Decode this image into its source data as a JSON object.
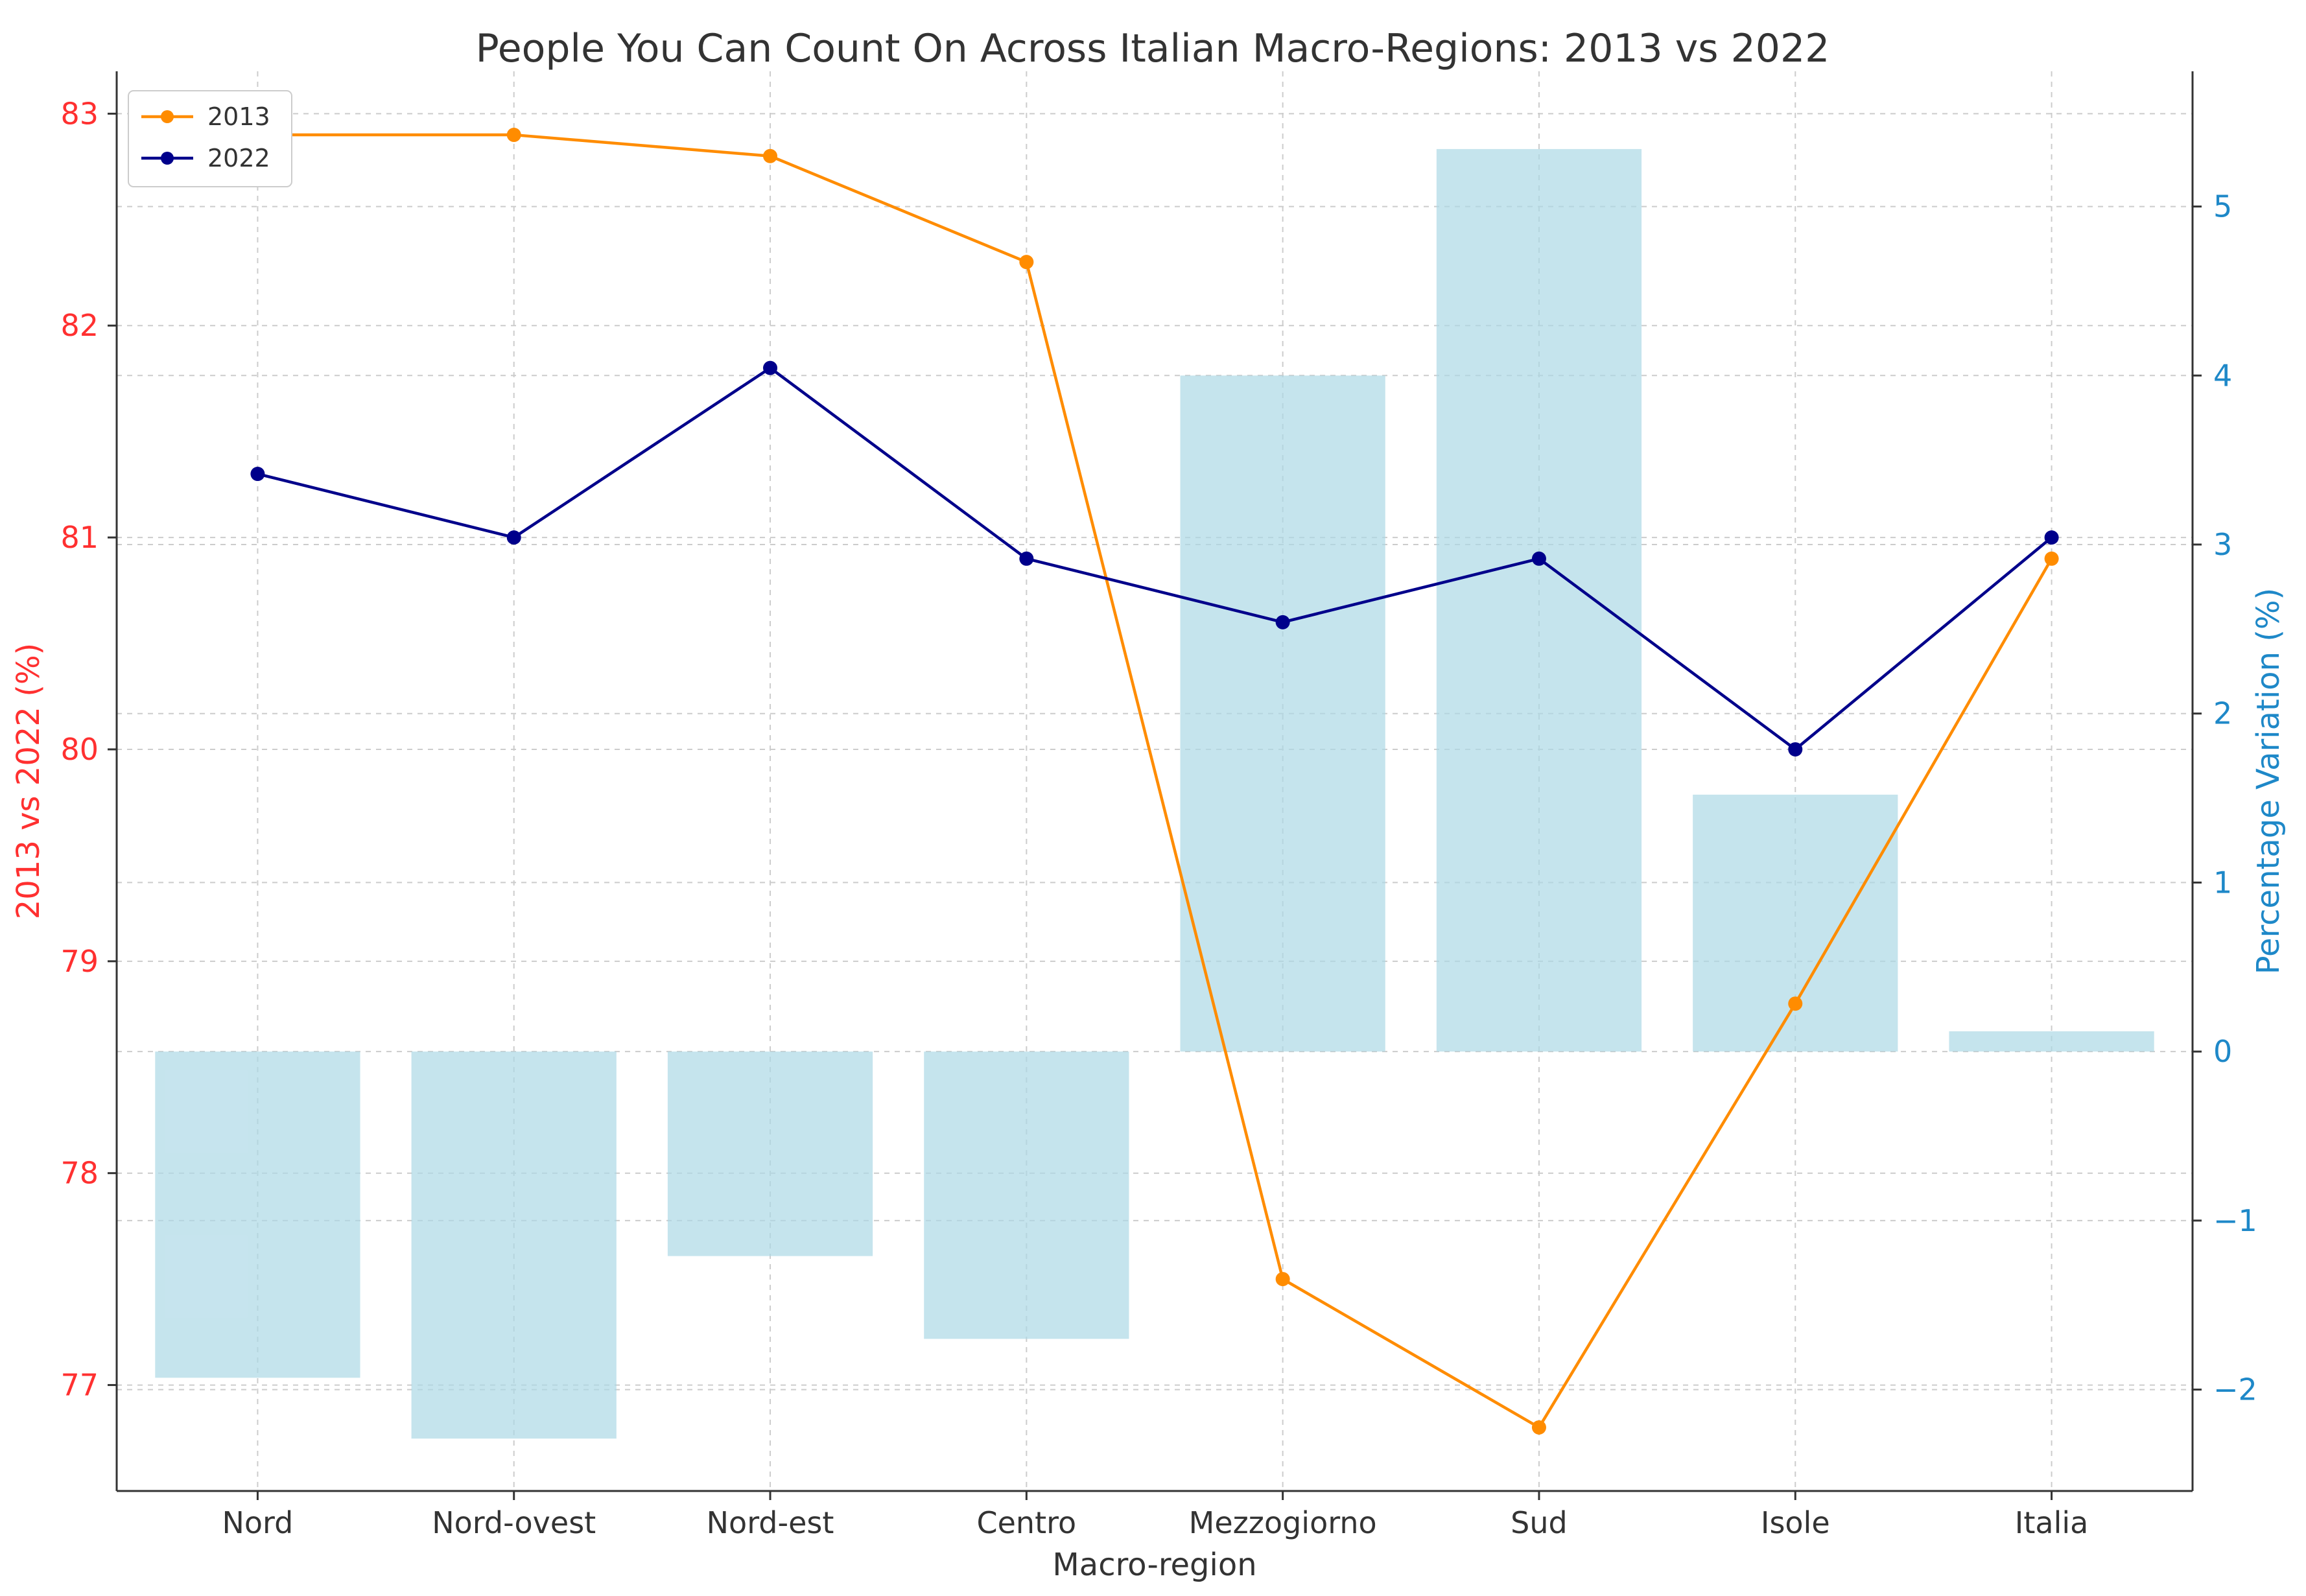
{
  "chart_data": {
    "type": "bar+line",
    "title": "People You Can Count On Across Italian Macro-Regions: 2013 vs 2022",
    "xlabel": "Macro-region",
    "ylabel_left": "2013 vs 2022 (%)",
    "ylabel_right": "Percentage Variation (%)",
    "categories": [
      "Nord",
      "Nord-ovest",
      "Nord-est",
      "Centro",
      "Mezzogiorno",
      "Sud",
      "Isole",
      "Italia"
    ],
    "series": [
      {
        "name": "2013",
        "kind": "line",
        "axis": "left",
        "color": "#ff8c00",
        "values": [
          82.9,
          82.9,
          82.8,
          82.3,
          77.5,
          76.8,
          78.8,
          80.9
        ]
      },
      {
        "name": "2022",
        "kind": "line",
        "axis": "left",
        "color": "#00008b",
        "values": [
          81.3,
          81.0,
          81.8,
          80.9,
          80.6,
          80.9,
          80.0,
          81.0
        ]
      },
      {
        "kind": "bar",
        "axis": "right",
        "color": "#add8e6",
        "values": [
          -1.93,
          -2.29,
          -1.21,
          -1.7,
          4.0,
          5.34,
          1.52,
          0.12
        ]
      }
    ],
    "ylim_left": [
      76.5,
      83.2
    ],
    "ylim_right": [
      -2.6,
      5.8
    ],
    "yticks_left": [
      "77",
      "78",
      "79",
      "80",
      "81",
      "82",
      "83"
    ],
    "yticks_right": [
      "−2",
      "−1",
      "0",
      "1",
      "2",
      "3",
      "4",
      "5"
    ],
    "grid": true,
    "legend_position": "top-left",
    "left_axis_color": "#ff3030",
    "right_axis_color": "#1e88c8"
  }
}
